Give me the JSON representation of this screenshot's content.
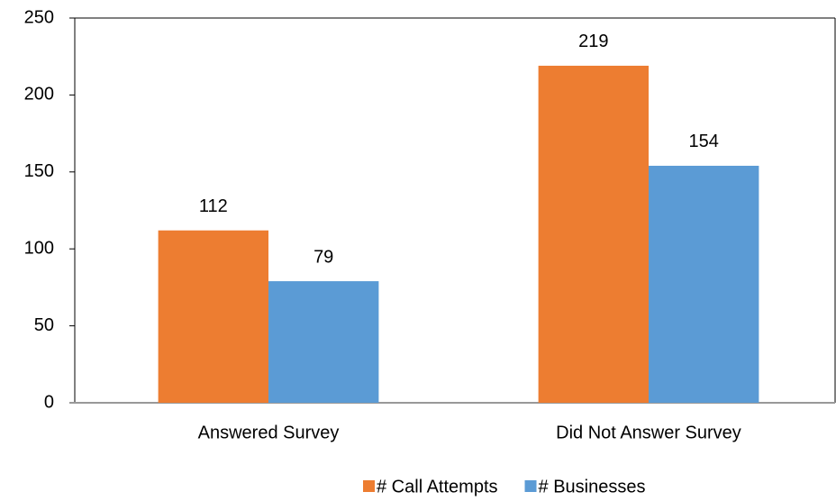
{
  "chart_data": {
    "type": "bar",
    "categories": [
      "Answered Survey",
      "Did Not Answer Survey"
    ],
    "series": [
      {
        "name": "# Call Attempts",
        "color": "#ed7d31",
        "values": [
          112,
          219
        ]
      },
      {
        "name": "# Businesses",
        "color": "#5b9bd5",
        "values": [
          79,
          154
        ]
      }
    ],
    "ylim": [
      0,
      250
    ],
    "yticks": [
      0,
      50,
      100,
      150,
      200,
      250
    ],
    "grid": false,
    "legend": "bottom"
  }
}
